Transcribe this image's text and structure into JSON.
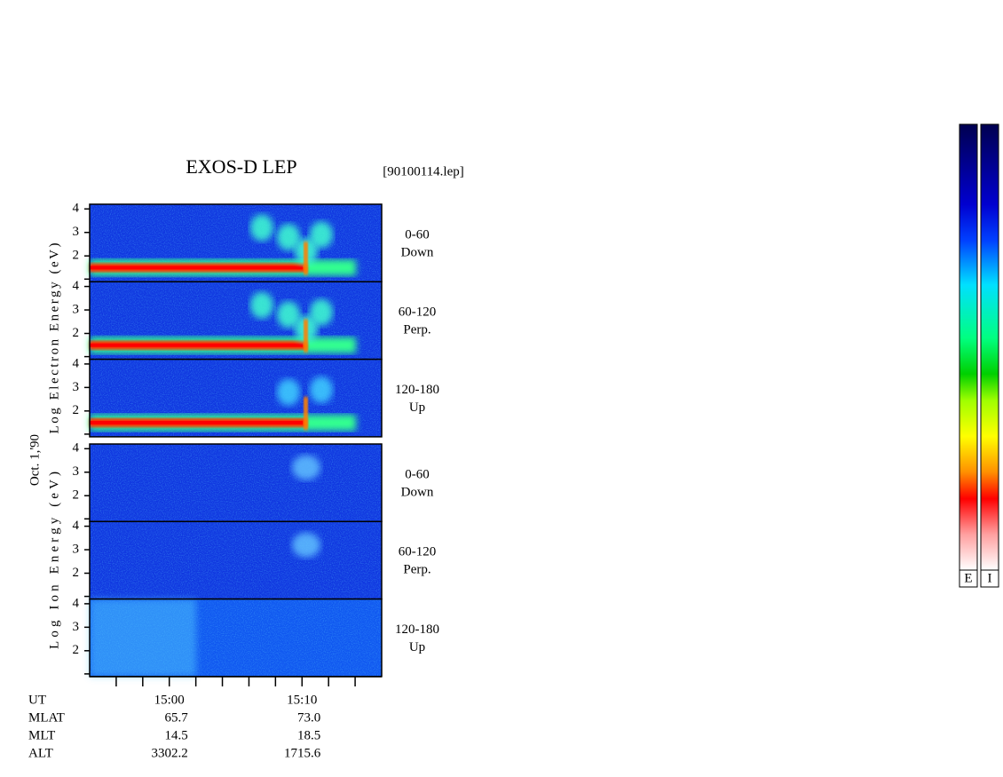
{
  "chart_data": {
    "type": "spectrogram",
    "title": "EXOS-D LEP",
    "file": "[90100114.lep]",
    "date": "Oct. 1,'90",
    "groups": [
      {
        "ylabel": "Log Electron Energy (eV)",
        "species": "electron",
        "panels": [
          {
            "range": "0-60",
            "direction": "Down"
          },
          {
            "range": "60-120",
            "direction": "Perp."
          },
          {
            "range": "120-180",
            "direction": "Up"
          }
        ]
      },
      {
        "ylabel": "Log Ion Energy (eV)",
        "species": "ion",
        "panels": [
          {
            "range": "0-60",
            "direction": "Down"
          },
          {
            "range": "60-120",
            "direction": "Perp."
          },
          {
            "range": "120-180",
            "direction": "Up"
          }
        ]
      }
    ],
    "ylim": [
      0.9,
      4.2
    ],
    "yticks": [
      2,
      3,
      4
    ],
    "xlim": [
      894,
      916
    ],
    "xticks": [
      {
        "value": 900,
        "label": "15:00"
      },
      {
        "value": 910,
        "label": "15:10"
      }
    ],
    "xminorticks": [
      896,
      898,
      902,
      904,
      906,
      908,
      912,
      914
    ],
    "orbit": {
      "labels": [
        "UT",
        "MLAT",
        "MLT",
        "ALT"
      ],
      "columns": [
        [
          "65.7",
          "14.5",
          "3302.2"
        ],
        [
          "73.0",
          "18.5",
          "1715.6"
        ]
      ]
    },
    "colorbars": [
      "E",
      "I"
    ]
  }
}
